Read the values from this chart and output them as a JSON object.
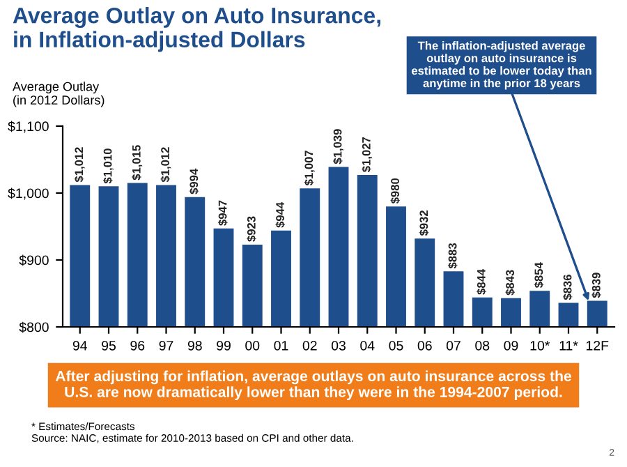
{
  "chart_data": {
    "type": "bar",
    "title": "Average Outlay on Auto Insurance,\nin Inflation-adjusted Dollars",
    "ylabel": "Average Outlay\n(in 2012 Dollars)",
    "categories": [
      "94",
      "95",
      "96",
      "97",
      "98",
      "99",
      "00",
      "01",
      "02",
      "03",
      "04",
      "05",
      "06",
      "07",
      "08",
      "09",
      "10*",
      "11*",
      "12F"
    ],
    "values": [
      1012,
      1010,
      1015,
      1012,
      994,
      947,
      923,
      944,
      1007,
      1039,
      1027,
      980,
      932,
      883,
      844,
      843,
      854,
      836,
      839
    ],
    "value_labels": [
      "$1,012",
      "$1,010",
      "$1,015",
      "$1,012",
      "$994",
      "$947",
      "$923",
      "$944",
      "$1,007",
      "$1,039",
      "$1,027",
      "$980",
      "$932",
      "$883",
      "$844",
      "$843",
      "$854",
      "$836",
      "$839"
    ],
    "color": "#1f4e8c",
    "ylim": [
      800,
      1100
    ],
    "yticks": [
      {
        "value": 800,
        "label": "$800"
      },
      {
        "value": 900,
        "label": "$900"
      },
      {
        "value": 1000,
        "label": "$1,000"
      },
      {
        "value": 1100,
        "label": "$1,100"
      }
    ],
    "grid": false,
    "annotations": [
      {
        "text": "The inflation-adjusted average\noutlay on auto insurance is\nestimated to be lower today than\nanytime in the prior 18 years",
        "x": "12F",
        "y": 839
      },
      "After adjusting for inflation, average outlays on auto insurance across the\nU.S. are now dramatically lower than they were in the 1994-2007 period.",
      "* Estimates/Forecasts",
      "Source: NAIC, estimate for 2010-2013 based on CPI and other data.",
      "2"
    ]
  }
}
